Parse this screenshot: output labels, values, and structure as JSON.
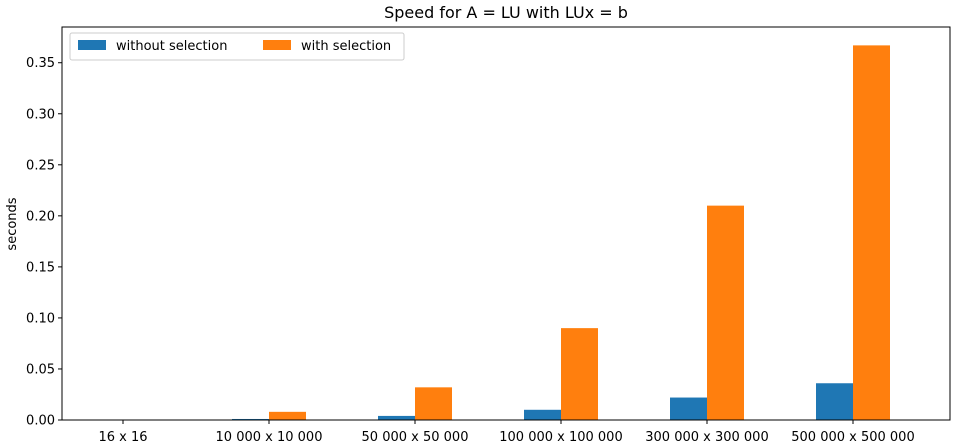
{
  "chart_data": {
    "type": "bar",
    "title": "Speed for A = LU with LUx = b",
    "xlabel": "",
    "ylabel": "seconds",
    "categories": [
      "16 x 16",
      "10 000 x 10 000",
      "50 000 x 50 000",
      "100 000 x 100 000",
      "300 000 x 300 000",
      "500 000 x 500 000"
    ],
    "series": [
      {
        "name": "without selection",
        "values": [
          0.0,
          0.001,
          0.004,
          0.01,
          0.022,
          0.036
        ],
        "color": "#1f77b4"
      },
      {
        "name": "with selection",
        "values": [
          0.0,
          0.008,
          0.032,
          0.09,
          0.21,
          0.367
        ],
        "color": "#ff7f0e"
      }
    ],
    "ylim": [
      0,
      0.385
    ],
    "yticks": [
      0.0,
      0.05,
      0.1,
      0.15,
      0.2,
      0.25,
      0.3,
      0.35
    ],
    "ytick_labels": [
      "0.00",
      "0.05",
      "0.10",
      "0.15",
      "0.20",
      "0.25",
      "0.30",
      "0.35"
    ],
    "grid": false,
    "legend_position": "top-left"
  }
}
